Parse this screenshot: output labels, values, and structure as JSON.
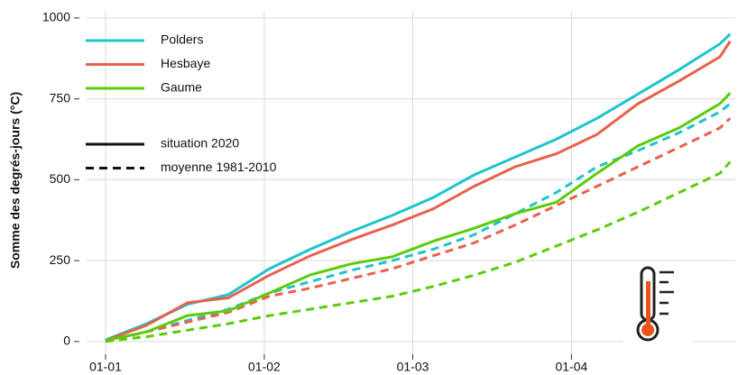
{
  "chart_data": {
    "type": "line",
    "y_label": "Somme des degrés-jours (°C)",
    "x": [
      0,
      8,
      16,
      24,
      32,
      40,
      48,
      56,
      64,
      72,
      80,
      88,
      96,
      104,
      112,
      120,
      122
    ],
    "xlim": [
      -3,
      123
    ],
    "xticks": [
      {
        "value": 0,
        "label": "01-01"
      },
      {
        "value": 31,
        "label": "01-02"
      },
      {
        "value": 60,
        "label": "01-03"
      },
      {
        "value": 91,
        "label": "01-04"
      }
    ],
    "ylim": [
      -45,
      1022
    ],
    "yticks": [
      0,
      250,
      500,
      750,
      1000
    ],
    "grid": true,
    "series": [
      {
        "name": "Polders",
        "color": "#1fc4cc",
        "values": [
          5,
          55,
          115,
          145,
          225,
          285,
          340,
          390,
          445,
          515,
          570,
          625,
          690,
          765,
          840,
          920,
          950
        ],
        "values_mean": [
          0,
          30,
          65,
          100,
          150,
          185,
          220,
          250,
          285,
          330,
          395,
          460,
          540,
          590,
          645,
          710,
          735
        ]
      },
      {
        "name": "Hesbaye",
        "color": "#e8614e",
        "values": [
          3,
          50,
          120,
          135,
          205,
          265,
          315,
          360,
          410,
          480,
          540,
          580,
          640,
          735,
          805,
          880,
          928
        ],
        "values_mean": [
          0,
          30,
          60,
          90,
          140,
          165,
          195,
          225,
          265,
          305,
          360,
          420,
          480,
          540,
          600,
          660,
          690
        ]
      },
      {
        "name": "Gaume",
        "color": "#5ccc0a",
        "values": [
          3,
          30,
          80,
          95,
          150,
          206,
          240,
          262,
          310,
          350,
          395,
          430,
          520,
          605,
          660,
          735,
          768
        ],
        "values_mean": [
          0,
          15,
          35,
          55,
          80,
          100,
          120,
          140,
          170,
          205,
          245,
          295,
          345,
          400,
          460,
          520,
          555
        ]
      }
    ],
    "linetypes": [
      {
        "label": "situation 2020",
        "style": "solid"
      },
      {
        "label": "moyenne 1981-2010",
        "style": "dashed"
      }
    ]
  }
}
